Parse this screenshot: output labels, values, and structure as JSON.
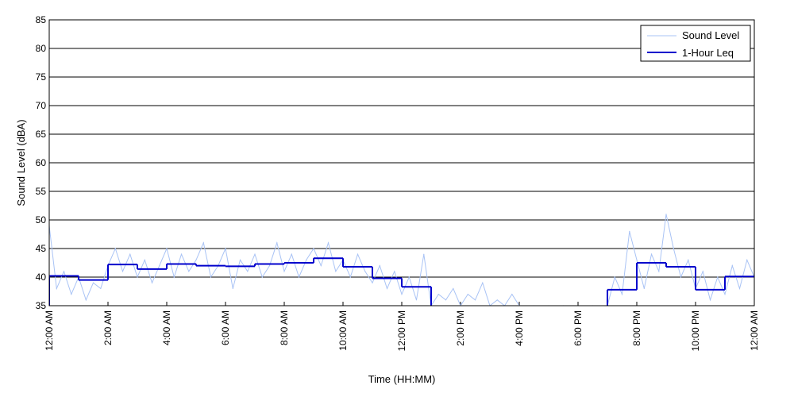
{
  "chart_data": {
    "type": "line",
    "xlabel": "Time (HH:MM)",
    "ylabel": "Sound Level (dBA)",
    "xlim": [
      0,
      24
    ],
    "ylim": [
      35,
      85
    ],
    "grid": true,
    "legend_position": "top-right",
    "x_ticks": [
      {
        "value": 0,
        "label": "12:00 AM"
      },
      {
        "value": 2,
        "label": "2:00 AM"
      },
      {
        "value": 4,
        "label": "4:00 AM"
      },
      {
        "value": 6,
        "label": "6:00 AM"
      },
      {
        "value": 8,
        "label": "8:00 AM"
      },
      {
        "value": 10,
        "label": "10:00 AM"
      },
      {
        "value": 12,
        "label": "12:00 PM"
      },
      {
        "value": 14,
        "label": "2:00 PM"
      },
      {
        "value": 16,
        "label": "4:00 PM"
      },
      {
        "value": 18,
        "label": "6:00 PM"
      },
      {
        "value": 20,
        "label": "8:00 PM"
      },
      {
        "value": 22,
        "label": "10:00 PM"
      },
      {
        "value": 24,
        "label": "12:00 AM"
      }
    ],
    "y_ticks": [
      35,
      40,
      45,
      50,
      55,
      60,
      65,
      70,
      75,
      80,
      85
    ],
    "series": [
      {
        "name": "Sound Level",
        "color": "#a9c3f5",
        "x": [
          0.0,
          0.25,
          0.5,
          0.75,
          1.0,
          1.25,
          1.5,
          1.75,
          2.0,
          2.25,
          2.5,
          2.75,
          3.0,
          3.25,
          3.5,
          3.75,
          4.0,
          4.25,
          4.5,
          4.75,
          5.0,
          5.25,
          5.5,
          5.75,
          6.0,
          6.25,
          6.5,
          6.75,
          7.0,
          7.25,
          7.5,
          7.75,
          8.0,
          8.25,
          8.5,
          8.75,
          9.0,
          9.25,
          9.5,
          9.75,
          10.0,
          10.25,
          10.5,
          10.75,
          11.0,
          11.25,
          11.5,
          11.75,
          12.0,
          12.25,
          12.5,
          12.75,
          13.0,
          13.25,
          13.5,
          13.75,
          14.0,
          14.25,
          14.5,
          14.75,
          15.0,
          15.25,
          15.5,
          15.75,
          16.0,
          16.5,
          17.0,
          17.5,
          18.0,
          18.5,
          19.0,
          19.25,
          19.5,
          19.75,
          20.0,
          20.25,
          20.5,
          20.75,
          21.0,
          21.25,
          21.5,
          21.75,
          22.0,
          22.25,
          22.5,
          22.75,
          23.0,
          23.25,
          23.5,
          23.75,
          24.0
        ],
        "values": [
          49,
          38,
          41,
          37,
          40,
          36,
          39,
          38,
          42,
          45,
          41,
          44,
          40,
          43,
          39,
          42,
          45,
          40,
          44,
          41,
          43,
          46,
          40,
          42,
          45,
          38,
          43,
          41,
          44,
          40,
          42,
          46,
          41,
          44,
          40,
          43,
          45,
          42,
          46,
          41,
          43,
          40,
          44,
          41,
          39,
          42,
          38,
          41,
          37,
          40,
          36,
          44,
          35,
          37,
          36,
          38,
          35,
          37,
          36,
          39,
          35,
          36,
          35,
          37,
          35,
          35,
          35,
          35,
          35,
          35,
          35,
          40,
          37,
          48,
          43,
          38,
          44,
          41,
          51,
          45,
          40,
          43,
          38,
          41,
          36,
          40,
          37,
          42,
          38,
          43,
          40
        ]
      },
      {
        "name": "1-Hour Leq",
        "color": "#0000cc",
        "step": true,
        "hours": [
          0,
          1,
          2,
          3,
          4,
          5,
          6,
          7,
          8,
          9,
          10,
          11,
          12,
          13,
          14,
          15,
          16,
          17,
          18,
          19,
          20,
          21,
          22,
          23
        ],
        "values": [
          40.2,
          39.5,
          42.2,
          41.4,
          42.3,
          42.0,
          41.9,
          42.3,
          42.5,
          43.3,
          41.8,
          39.8,
          38.3,
          null,
          null,
          null,
          null,
          null,
          null,
          37.8,
          42.5,
          41.8,
          37.8,
          40.1
        ]
      }
    ]
  }
}
